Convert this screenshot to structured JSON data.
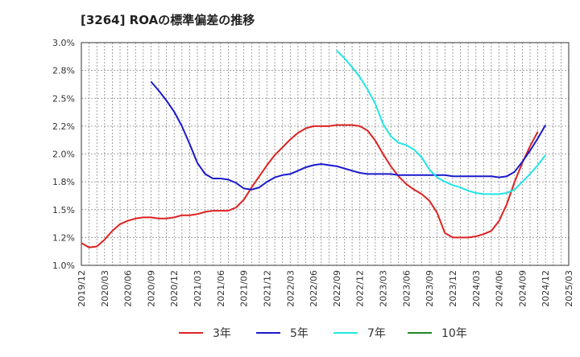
{
  "chart_data": {
    "type": "line",
    "title": "[3264]  ROAの標準偏差の推移",
    "xlabel": "",
    "ylabel": "",
    "ylim": [
      1.0,
      3.0
    ],
    "grid": true,
    "legend_position": "bottom",
    "y_ticks": [
      "3.0%",
      "2.8%",
      "2.5%",
      "2.2%",
      "2.0%",
      "1.8%",
      "1.5%",
      "1.2%",
      "1.0%"
    ],
    "y_tick_values": [
      3.0,
      2.75,
      2.5,
      2.25,
      2.0,
      1.75,
      1.5,
      1.25,
      1.0
    ],
    "x_ticks": [
      "2019/12",
      "2020/03",
      "2020/06",
      "2020/09",
      "2020/12",
      "2021/03",
      "2021/06",
      "2021/09",
      "2021/12",
      "2022/03",
      "2022/06",
      "2022/09",
      "2022/12",
      "2023/03",
      "2023/06",
      "2023/09",
      "2023/12",
      "2024/03",
      "2024/06",
      "2024/09",
      "2024/12",
      "2025/03"
    ],
    "series": [
      {
        "name": "3年",
        "color": "#dd2222",
        "start_month_index": 0,
        "values": [
          1.2,
          1.16,
          1.17,
          1.23,
          1.31,
          1.37,
          1.4,
          1.42,
          1.43,
          1.43,
          1.42,
          1.42,
          1.43,
          1.45,
          1.45,
          1.46,
          1.48,
          1.49,
          1.49,
          1.49,
          1.52,
          1.59,
          1.7,
          1.8,
          1.9,
          1.99,
          2.06,
          2.13,
          2.19,
          2.23,
          2.25,
          2.25,
          2.25,
          2.26,
          2.26,
          2.26,
          2.25,
          2.21,
          2.12,
          2.0,
          1.89,
          1.8,
          1.73,
          1.68,
          1.64,
          1.58,
          1.47,
          1.29,
          1.25,
          1.25,
          1.25,
          1.26,
          1.28,
          1.31,
          1.4,
          1.55,
          1.75,
          1.92,
          2.07,
          2.2
        ]
      },
      {
        "name": "5年",
        "color": "#1a1acc",
        "start_month_index": 9,
        "values": [
          2.65,
          2.57,
          2.48,
          2.38,
          2.25,
          2.09,
          1.92,
          1.82,
          1.78,
          1.78,
          1.77,
          1.74,
          1.69,
          1.68,
          1.7,
          1.75,
          1.79,
          1.81,
          1.82,
          1.85,
          1.88,
          1.9,
          1.91,
          1.9,
          1.89,
          1.87,
          1.85,
          1.83,
          1.82,
          1.82,
          1.82,
          1.82,
          1.81,
          1.81,
          1.81,
          1.81,
          1.81,
          1.81,
          1.81,
          1.8,
          1.8,
          1.8,
          1.8,
          1.8,
          1.8,
          1.79,
          1.8,
          1.84,
          1.93,
          2.03,
          2.14,
          2.26
        ]
      },
      {
        "name": "7年",
        "color": "#22e5e5",
        "start_month_index": 33,
        "values": [
          2.93,
          2.86,
          2.78,
          2.69,
          2.58,
          2.45,
          2.27,
          2.16,
          2.1,
          2.08,
          2.04,
          1.97,
          1.86,
          1.79,
          1.75,
          1.72,
          1.7,
          1.67,
          1.65,
          1.64,
          1.64,
          1.64,
          1.65,
          1.68,
          1.75,
          1.82,
          1.9,
          1.99
        ]
      },
      {
        "name": "10年",
        "color": "#228822",
        "start_month_index": 0,
        "values": []
      }
    ]
  }
}
